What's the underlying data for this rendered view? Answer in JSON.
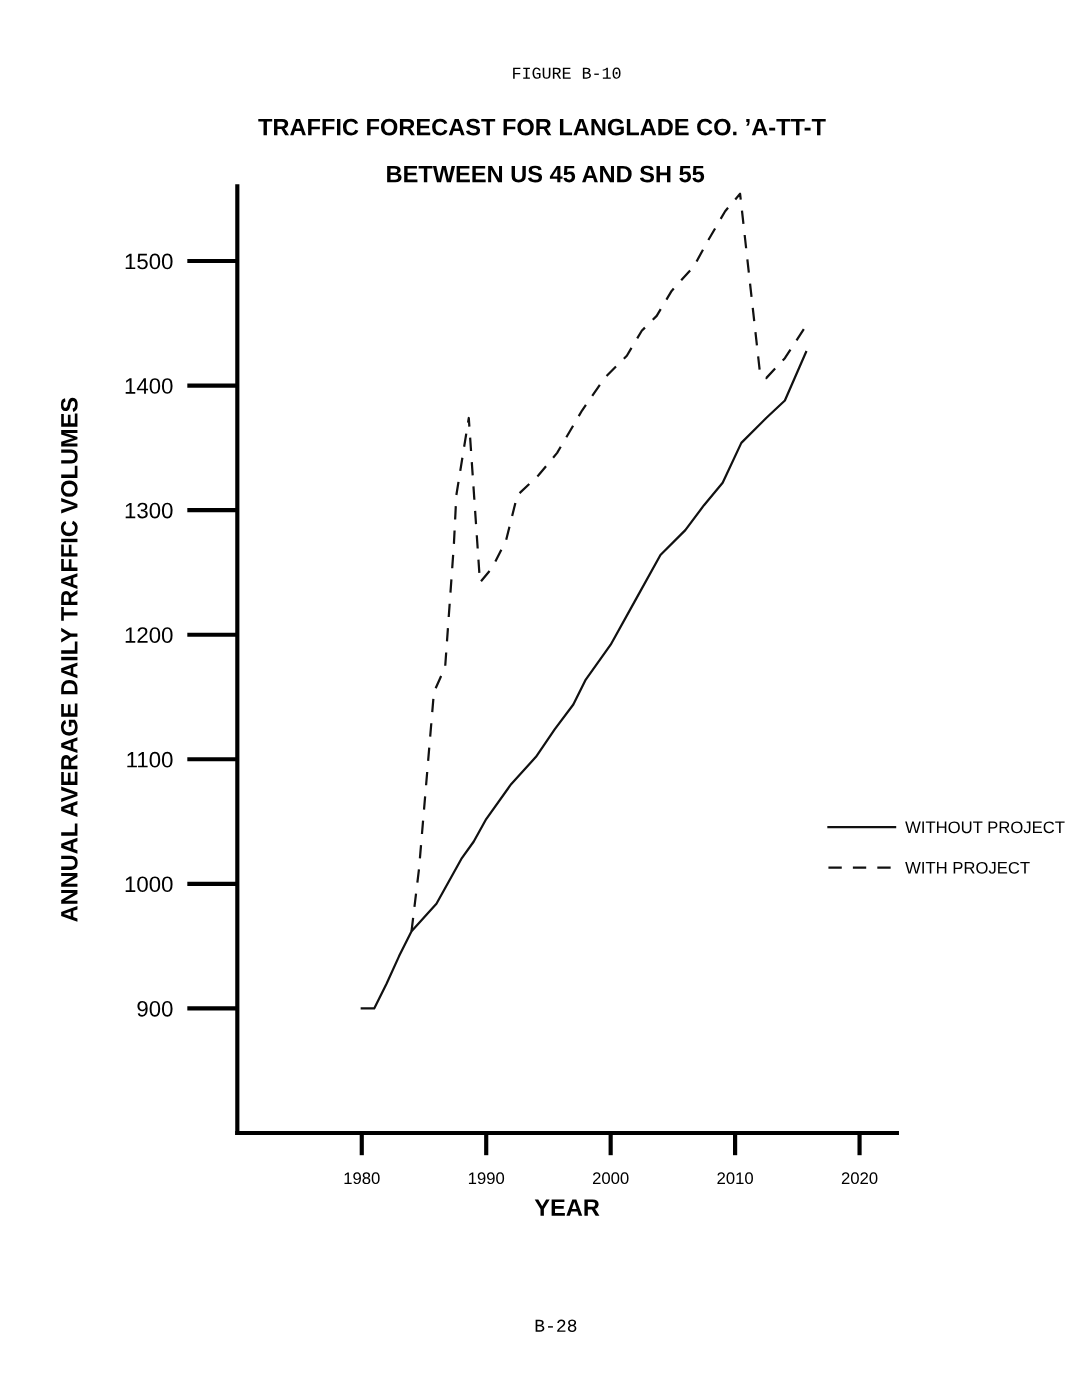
{
  "chart_data": {
    "type": "line",
    "title": "TRAFFIC FORECAST FOR LANGLADE CO. ’A-TT-T",
    "subtitle": "BETWEEN US 45 AND SH 55",
    "xlabel": "YEAR",
    "ylabel": "ANNUAL AVERAGE DAILY TRAFFIC VOLUMES",
    "annotations": [
      "FIGURE B-10",
      "B-28"
    ],
    "series": [
      {
        "name": "WITHOUT PROJECT",
        "color": "#111111",
        "line_style": "solid",
        "x": [
          1980,
          1981,
          1982,
          1983,
          1984,
          1986,
          1988,
          1989,
          1990,
          1992,
          1994,
          1995.5,
          1997,
          1998,
          2000,
          2002,
          2004,
          2006,
          2007.5,
          2009,
          2010.5,
          2012.5,
          2014,
          2015.7
        ],
        "values": [
          900,
          900,
          920,
          942,
          962,
          984,
          1020,
          1034,
          1052,
          1080,
          1102,
          1124,
          1144,
          1164,
          1192,
          1228,
          1264,
          1284,
          1304,
          1322,
          1354,
          1374,
          1388,
          1427
        ]
      },
      {
        "name": "WITH PROJECT",
        "color": "#111111",
        "line_style": "dashed",
        "x": [
          1984,
          1984.6,
          1985.8,
          1986.7,
          1987.4,
          1987.6,
          1988.6,
          1989.5,
          1990.5,
          1991.6,
          1992.5,
          1994.2,
          1995.7,
          1997.7,
          1999.5,
          2001.3,
          2002.5,
          2003.7,
          2004.9,
          2006.7,
          2007.8,
          2009.2,
          2010.4,
          2012,
          2012.5,
          2014,
          2015.7
        ],
        "values": [
          962,
          1012,
          1154,
          1174,
          1272,
          1312,
          1374,
          1242,
          1254,
          1276,
          1312,
          1328,
          1346,
          1380,
          1406,
          1424,
          1444,
          1456,
          1476,
          1496,
          1516,
          1540,
          1554,
          1410,
          1406,
          1422,
          1448
        ]
      }
    ],
    "xlim": [
      1970,
      2023
    ],
    "xticks": [
      1980,
      1990,
      2000,
      2010,
      2020
    ],
    "ylim": [
      800,
      1560
    ],
    "yticks": [
      900,
      1000,
      1100,
      1200,
      1300,
      1400,
      1500
    ],
    "grid": false,
    "legend": "right",
    "marker": "none"
  }
}
